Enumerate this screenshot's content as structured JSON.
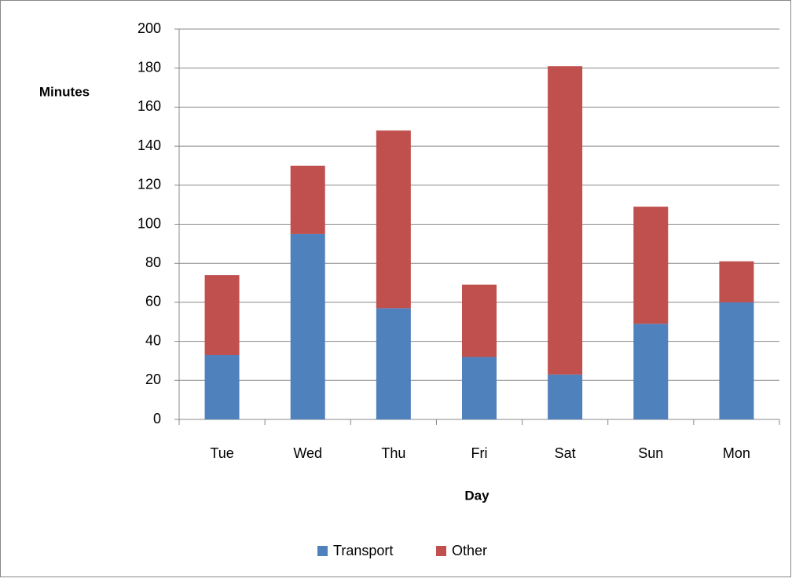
{
  "chart_data": {
    "type": "stacked_bar",
    "x_label": "Day",
    "y_label": "Minutes",
    "categories": [
      "Tue",
      "Wed",
      "Thu",
      "Fri",
      "Sat",
      "Sun",
      "Mon"
    ],
    "series": [
      {
        "name": "Transport",
        "color": "#4f81bd",
        "values": [
          33,
          95,
          57,
          32,
          23,
          49,
          60
        ]
      },
      {
        "name": "Other",
        "color": "#c0504d",
        "values": [
          41,
          35,
          91,
          37,
          158,
          60,
          21
        ]
      }
    ],
    "ylim": [
      0,
      200
    ],
    "yticks": [
      0,
      20,
      40,
      60,
      80,
      100,
      120,
      140,
      160,
      180,
      200
    ],
    "grid": true,
    "legend": "bottom"
  }
}
